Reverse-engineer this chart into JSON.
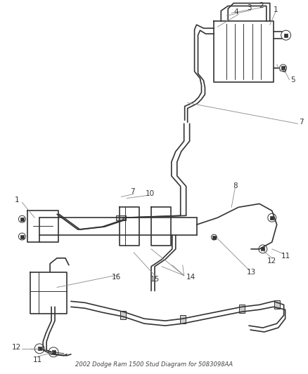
{
  "title": "2002 Dodge Ram 1500 Stud Diagram for 5083098AA",
  "bg": "#ffffff",
  "lc": "#333333",
  "lc2": "#555555",
  "leader_color": "#888888",
  "figsize": [
    4.38,
    5.33
  ],
  "dpi": 100
}
